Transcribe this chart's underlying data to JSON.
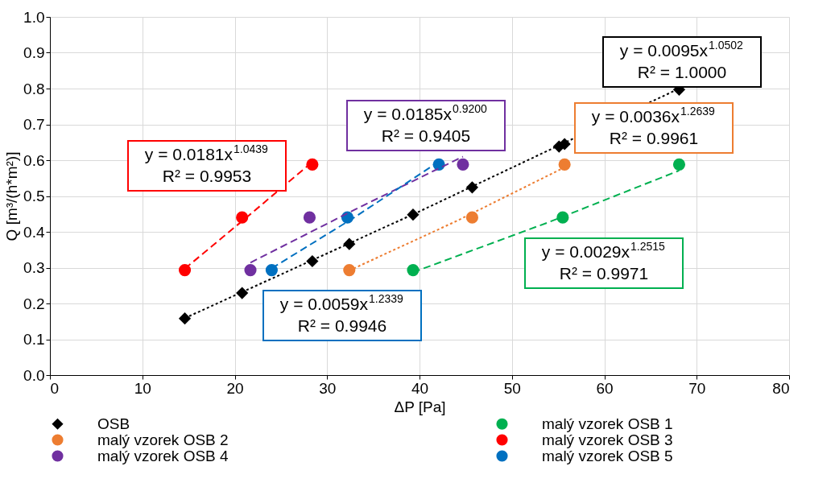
{
  "chart_data": {
    "type": "scatter",
    "xlabel": "ΔP [Pa]",
    "ylabel": "Q [m³/(h*m²)]",
    "xlim": [
      0,
      80
    ],
    "xticks": [
      0,
      10,
      20,
      30,
      40,
      50,
      60,
      70,
      80
    ],
    "ylim": [
      0,
      1
    ],
    "yticks": [
      {
        "value": 0,
        "label": "0.0"
      },
      {
        "value": 0.1,
        "label": "0.1"
      },
      {
        "value": 0.2,
        "label": "0.2"
      },
      {
        "value": 0.3,
        "label": "0.3"
      },
      {
        "value": 0.4,
        "label": "0.4"
      },
      {
        "value": 0.5,
        "label": "0.5"
      },
      {
        "value": 0.6,
        "label": "0.6"
      },
      {
        "value": 0.7,
        "label": "0.7"
      },
      {
        "value": 0.8,
        "label": "0.8"
      },
      {
        "value": 0.9,
        "label": "0.9"
      },
      {
        "value": 1,
        "label": "1.0"
      }
    ],
    "grid": true,
    "legend": "bottom",
    "series": [
      {
        "name": "OSB",
        "color": "#000000",
        "marker": "diamond",
        "x": [
          14.6,
          20.8,
          28.4,
          32.4,
          39.3,
          45.7,
          55.1,
          55.7,
          68.1
        ],
        "values": [
          0.158,
          0.229,
          0.318,
          0.366,
          0.448,
          0.524,
          0.638,
          0.645,
          0.797
        ]
      },
      {
        "name": "malý vzorek OSB 1",
        "color": "#00b050",
        "marker": "circle",
        "x": [
          39.3,
          55.5,
          68.1
        ],
        "values": [
          0.293,
          0.44,
          0.588
        ]
      },
      {
        "name": "malý vzorek OSB 2",
        "color": "#ed7d31",
        "marker": "circle",
        "x": [
          32.4,
          45.7,
          55.7
        ],
        "values": [
          0.293,
          0.44,
          0.588
        ]
      },
      {
        "name": "malý vzorek OSB 3",
        "color": "#ff0000",
        "marker": "circle",
        "x": [
          14.6,
          20.8,
          28.4
        ],
        "values": [
          0.293,
          0.44,
          0.588
        ]
      },
      {
        "name": "malý vzorek OSB 4",
        "color": "#7030a0",
        "marker": "circle",
        "x": [
          21.7,
          28.1,
          44.7
        ],
        "values": [
          0.293,
          0.44,
          0.588
        ]
      },
      {
        "name": "malý vzorek OSB 5",
        "color": "#0070c0",
        "marker": "circle",
        "x": [
          24.0,
          32.2,
          42.1
        ],
        "values": [
          0.293,
          0.44,
          0.588
        ]
      },
      {
        "type": "line",
        "color": "#000000",
        "line_style": "dotted",
        "x": [
          14.6,
          40,
          68.1
        ],
        "values": [
          0.159,
          0.457,
          0.8
        ]
      },
      {
        "type": "line",
        "color": "#00b050",
        "line_style": "dashed",
        "x": [
          39.3,
          54,
          68.1
        ],
        "values": [
          0.287,
          0.427,
          0.571
        ]
      },
      {
        "type": "line",
        "color": "#ed7d31",
        "line_style": "dotted",
        "x": [
          32.4,
          44,
          55.7
        ],
        "values": [
          0.292,
          0.43,
          0.58
        ]
      },
      {
        "type": "line",
        "color": "#ff0000",
        "line_style": "dashed",
        "x": [
          14.6,
          21.5,
          28.4
        ],
        "values": [
          0.297,
          0.445,
          0.595
        ]
      },
      {
        "type": "line",
        "color": "#7030a0",
        "line_style": "dashed",
        "x": [
          21.7,
          33,
          44.7
        ],
        "values": [
          0.314,
          0.462,
          0.61
        ]
      },
      {
        "type": "line",
        "color": "#0070c0",
        "line_style": "dashed",
        "x": [
          24.0,
          33,
          42.1
        ],
        "values": [
          0.298,
          0.441,
          0.596
        ]
      }
    ],
    "annotations": [
      "y = 0.0095x$^{1.0502}$\nR² = 1.0000",
      "y = 0.0029x$^{1.2515}$\nR² = 0.9971",
      "y = 0.0036x$^{1.2639}$\nR² = 0.9961",
      "y = 0.0181x$^{1.0439}$\nR² = 0.9953",
      "y = 0.0185x$^{0.9200}$\nR² = 0.9405",
      "y = 0.0059x$^{1.2339}$\nR² = 0.9946"
    ]
  }
}
